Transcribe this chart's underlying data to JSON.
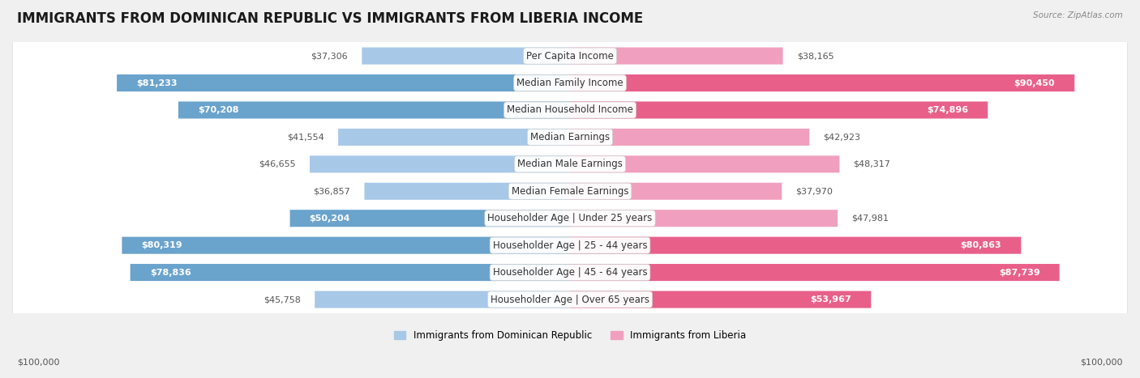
{
  "title": "IMMIGRANTS FROM DOMINICAN REPUBLIC VS IMMIGRANTS FROM LIBERIA INCOME",
  "source": "Source: ZipAtlas.com",
  "categories": [
    "Per Capita Income",
    "Median Family Income",
    "Median Household Income",
    "Median Earnings",
    "Median Male Earnings",
    "Median Female Earnings",
    "Householder Age | Under 25 years",
    "Householder Age | 25 - 44 years",
    "Householder Age | 45 - 64 years",
    "Householder Age | Over 65 years"
  ],
  "dominican": [
    37306,
    81233,
    70208,
    41554,
    46655,
    36857,
    50204,
    80319,
    78836,
    45758
  ],
  "liberia": [
    38165,
    90450,
    74896,
    42923,
    48317,
    37970,
    47981,
    80863,
    87739,
    53967
  ],
  "dominican_color_large": "#6aa3cc",
  "dominican_color_small": "#a8c8e8",
  "liberia_color_large": "#e8608a",
  "liberia_color_small": "#f0a0be",
  "dominican_label": "Immigrants from Dominican Republic",
  "liberia_label": "Immigrants from Liberia",
  "max_value": 100000,
  "background_color": "#f0f0f0",
  "row_bg_color": "#ffffff",
  "title_fontsize": 12,
  "label_fontsize": 8.5,
  "value_fontsize": 8,
  "xlabel_left": "$100,000",
  "xlabel_right": "$100,000",
  "large_threshold": 0.5
}
